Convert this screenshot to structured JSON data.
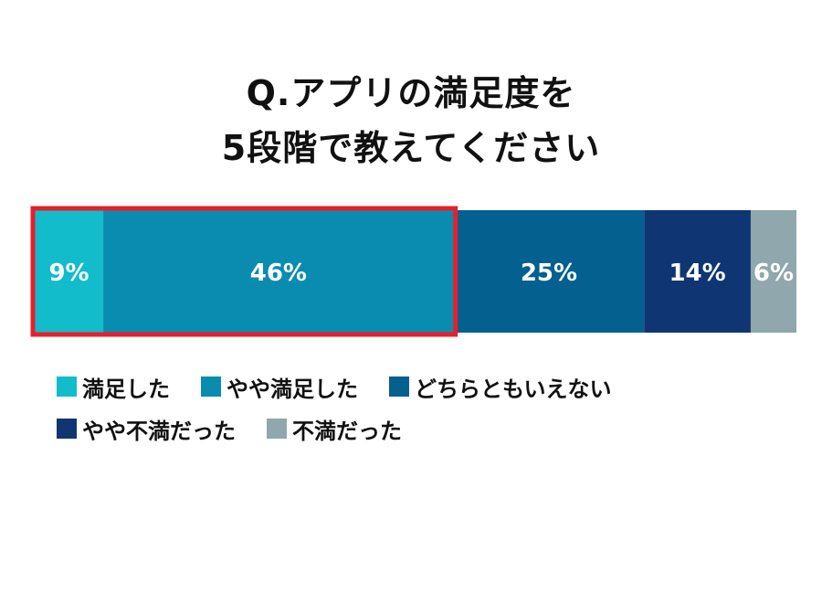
{
  "chart_data": {
    "type": "bar",
    "orientation": "horizontal-stacked",
    "title_lines": [
      "Q.アプリの満足度を",
      "5段階で教えてください"
    ],
    "unit": "%",
    "series": [
      {
        "name": "満足した",
        "value": 9,
        "label": "9%",
        "color": "#12bccb"
      },
      {
        "name": "やや満足した",
        "value": 46,
        "label": "46%",
        "color": "#0a8cb1"
      },
      {
        "name": "どちらともいえない",
        "value": 25,
        "label": "25%",
        "color": "#03608f"
      },
      {
        "name": "やや不満だった",
        "value": 14,
        "label": "14%",
        "color": "#0f3672"
      },
      {
        "name": "不満だった",
        "value": 6,
        "label": "6%",
        "color": "#8fa7ad"
      }
    ],
    "highlight": {
      "series": [
        "満足した",
        "やや満足した"
      ],
      "color": "#e5202c"
    },
    "legend_rows": [
      [
        0,
        1,
        2
      ],
      [
        3,
        4
      ]
    ]
  }
}
